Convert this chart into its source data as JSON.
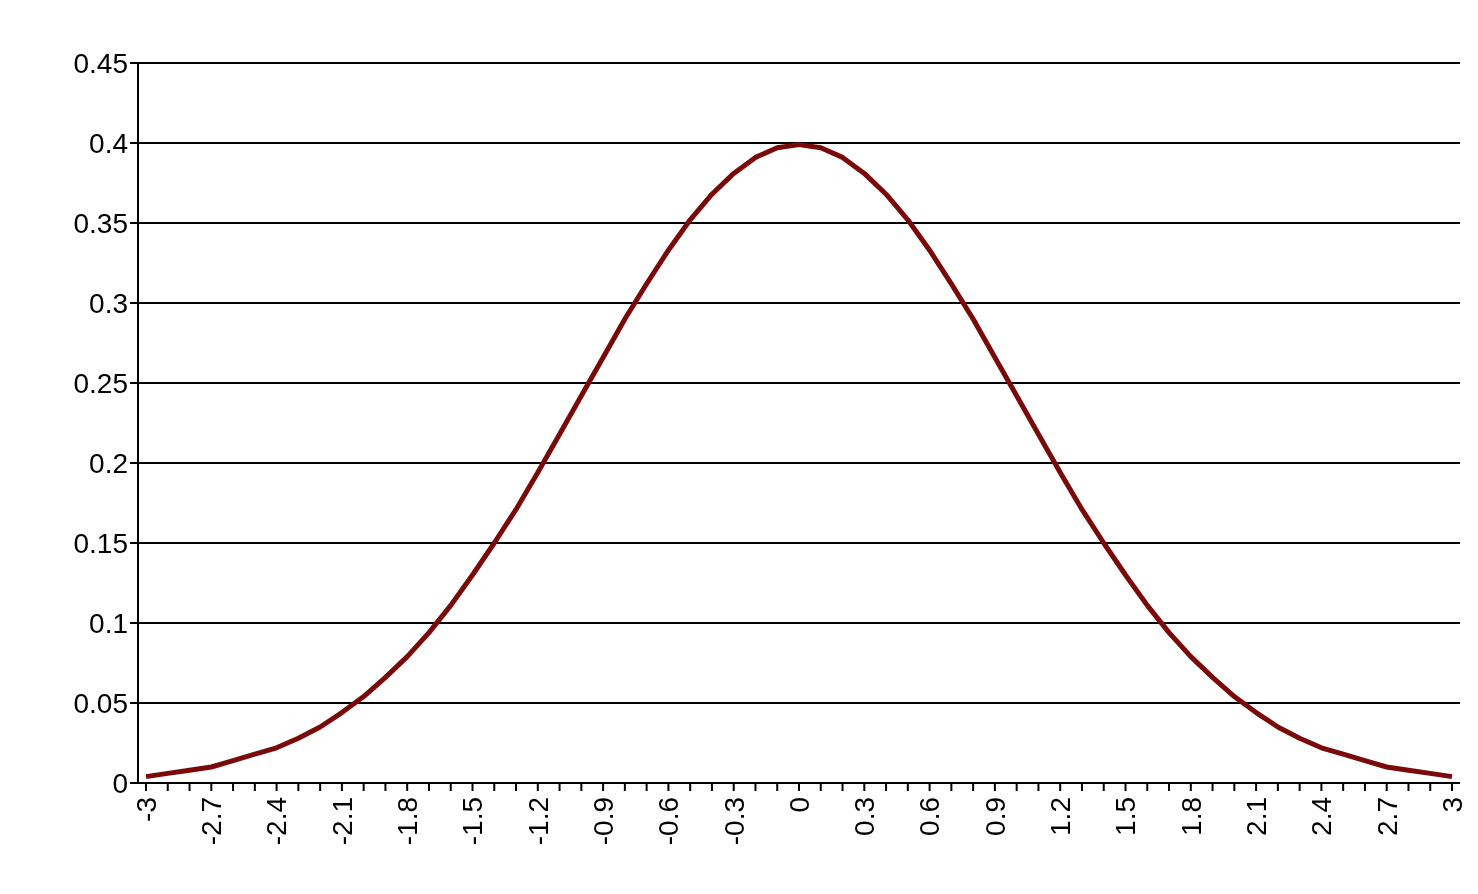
{
  "chart_data": {
    "type": "line",
    "categories": [
      "-3",
      null,
      null,
      "-2.7",
      null,
      null,
      "-2.4",
      null,
      null,
      "-2.1",
      null,
      null,
      "-1.8",
      null,
      null,
      "-1.5",
      null,
      null,
      "-1.2",
      null,
      null,
      "-0.9",
      null,
      null,
      "-0.6",
      null,
      null,
      "-0.3",
      null,
      null,
      "0",
      null,
      null,
      "0.3",
      null,
      null,
      "0.6",
      null,
      null,
      "0.9",
      null,
      null,
      "1.2",
      null,
      null,
      "1.5",
      null,
      null,
      "1.8",
      null,
      null,
      "2.1",
      null,
      null,
      "2.4",
      null,
      null,
      "2.7",
      null,
      null,
      "3"
    ],
    "values": [
      0.004,
      0.006,
      0.008,
      0.01,
      0.014,
      0.018,
      0.022,
      0.028,
      0.035,
      0.044,
      0.054,
      0.066,
      0.079,
      0.094,
      0.111,
      0.13,
      0.15,
      0.171,
      0.194,
      0.218,
      0.242,
      0.266,
      0.29,
      0.312,
      0.333,
      0.352,
      0.368,
      0.381,
      0.391,
      0.397,
      0.399,
      0.397,
      0.391,
      0.381,
      0.368,
      0.352,
      0.333,
      0.312,
      0.29,
      0.266,
      0.242,
      0.218,
      0.194,
      0.171,
      0.15,
      0.13,
      0.111,
      0.094,
      0.079,
      0.066,
      0.054,
      0.044,
      0.035,
      0.028,
      0.022,
      0.018,
      0.014,
      0.01,
      0.008,
      0.006,
      0.004
    ],
    "color": "#7a0a0a",
    "ylim": [
      0,
      0.45
    ],
    "yticks": [
      0,
      0.05,
      0.1,
      0.15,
      0.2,
      0.25,
      0.3,
      0.35,
      0.4,
      0.45
    ],
    "grid": "y",
    "marker": "none",
    "line_style": "solid"
  }
}
